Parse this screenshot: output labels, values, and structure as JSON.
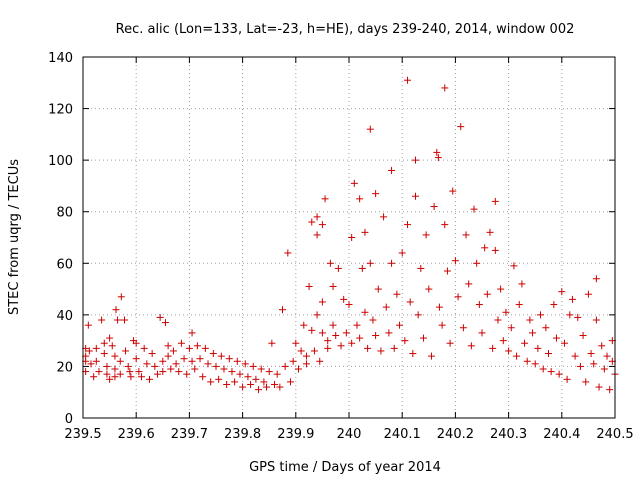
{
  "chart_data": {
    "type": "scatter",
    "title": "Rec. alic (Lon=133, Lat=-23, h=HE), days 239-240, 2014, window 002",
    "xlabel": "GPS time / Days of year 2014",
    "ylabel": "STEC from uqrg / TECUs",
    "xlim": [
      239.5,
      240.5
    ],
    "ylim": [
      0,
      140
    ],
    "xticks": [
      "239.5",
      "239.6",
      "239.7",
      "239.8",
      "239.9",
      "240",
      "240.1",
      "240.2",
      "240.3",
      "240.4",
      "240.5"
    ],
    "yticks": [
      "0",
      "20",
      "40",
      "60",
      "80",
      "100",
      "120",
      "140"
    ],
    "grid": true,
    "marker": "+",
    "color": "#cc0000",
    "series": [
      {
        "points": [
          [
            239.505,
            27
          ],
          [
            239.505,
            24
          ],
          [
            239.505,
            22
          ],
          [
            239.505,
            18
          ],
          [
            239.51,
            36
          ],
          [
            239.512,
            26
          ],
          [
            239.515,
            21
          ],
          [
            239.52,
            16
          ],
          [
            239.525,
            27
          ],
          [
            239.525,
            22
          ],
          [
            239.53,
            18
          ],
          [
            239.535,
            38
          ],
          [
            239.54,
            29
          ],
          [
            239.54,
            25
          ],
          [
            239.545,
            20
          ],
          [
            239.545,
            17
          ],
          [
            239.55,
            15
          ],
          [
            239.55,
            31
          ],
          [
            239.555,
            28
          ],
          [
            239.56,
            24
          ],
          [
            239.56,
            19
          ],
          [
            239.56,
            16
          ],
          [
            239.562,
            42
          ],
          [
            239.565,
            38
          ],
          [
            239.57,
            22
          ],
          [
            239.57,
            17
          ],
          [
            239.572,
            47
          ],
          [
            239.578,
            38
          ],
          [
            239.58,
            26
          ],
          [
            239.585,
            20
          ],
          [
            239.588,
            18
          ],
          [
            239.59,
            16
          ],
          [
            239.595,
            30
          ],
          [
            239.6,
            29
          ],
          [
            239.6,
            23
          ],
          [
            239.605,
            18
          ],
          [
            239.61,
            16
          ],
          [
            239.615,
            27
          ],
          [
            239.62,
            21
          ],
          [
            239.625,
            15
          ],
          [
            239.63,
            25
          ],
          [
            239.635,
            20
          ],
          [
            239.64,
            17
          ],
          [
            239.645,
            39
          ],
          [
            239.65,
            22
          ],
          [
            239.65,
            18
          ],
          [
            239.655,
            37
          ],
          [
            239.66,
            28
          ],
          [
            239.66,
            24
          ],
          [
            239.665,
            19
          ],
          [
            239.67,
            26
          ],
          [
            239.675,
            21
          ],
          [
            239.68,
            18
          ],
          [
            239.685,
            29
          ],
          [
            239.69,
            23
          ],
          [
            239.695,
            17
          ],
          [
            239.7,
            27
          ],
          [
            239.705,
            33
          ],
          [
            239.705,
            22
          ],
          [
            239.71,
            19
          ],
          [
            239.715,
            28
          ],
          [
            239.72,
            23
          ],
          [
            239.725,
            16
          ],
          [
            239.73,
            27
          ],
          [
            239.735,
            21
          ],
          [
            239.74,
            14
          ],
          [
            239.745,
            25
          ],
          [
            239.75,
            20
          ],
          [
            239.755,
            15
          ],
          [
            239.76,
            24
          ],
          [
            239.765,
            19
          ],
          [
            239.77,
            13
          ],
          [
            239.775,
            23
          ],
          [
            239.78,
            18
          ],
          [
            239.785,
            14
          ],
          [
            239.79,
            22
          ],
          [
            239.795,
            17
          ],
          [
            239.8,
            12
          ],
          [
            239.805,
            21
          ],
          [
            239.81,
            16
          ],
          [
            239.815,
            13
          ],
          [
            239.82,
            20
          ],
          [
            239.825,
            15
          ],
          [
            239.83,
            11
          ],
          [
            239.835,
            19
          ],
          [
            239.84,
            14
          ],
          [
            239.845,
            12
          ],
          [
            239.85,
            18
          ],
          [
            239.855,
            29
          ],
          [
            239.86,
            13
          ],
          [
            239.865,
            17
          ],
          [
            239.87,
            12
          ],
          [
            239.875,
            42
          ],
          [
            239.88,
            20
          ],
          [
            239.885,
            64
          ],
          [
            239.89,
            14
          ],
          [
            239.895,
            22
          ],
          [
            239.9,
            29
          ],
          [
            239.905,
            19
          ],
          [
            239.91,
            26
          ],
          [
            239.915,
            36
          ],
          [
            239.92,
            24
          ],
          [
            239.92,
            21
          ],
          [
            239.925,
            51
          ],
          [
            239.93,
            76
          ],
          [
            239.93,
            34
          ],
          [
            239.935,
            26
          ],
          [
            239.94,
            78
          ],
          [
            239.94,
            40
          ],
          [
            239.94,
            71
          ],
          [
            239.945,
            22
          ],
          [
            239.95,
            75
          ],
          [
            239.95,
            33
          ],
          [
            239.95,
            45
          ],
          [
            239.955,
            85
          ],
          [
            239.96,
            30
          ],
          [
            239.96,
            27
          ],
          [
            239.965,
            60
          ],
          [
            239.97,
            36
          ],
          [
            239.97,
            51
          ],
          [
            239.975,
            32
          ],
          [
            239.98,
            58
          ],
          [
            239.985,
            28
          ],
          [
            239.99,
            46
          ],
          [
            239.995,
            33
          ],
          [
            240.0,
            44
          ],
          [
            240.005,
            29
          ],
          [
            240.005,
            70
          ],
          [
            240.01,
            91
          ],
          [
            240.015,
            36
          ],
          [
            240.02,
            85
          ],
          [
            240.02,
            31
          ],
          [
            240.025,
            58
          ],
          [
            240.03,
            72
          ],
          [
            240.03,
            41
          ],
          [
            240.035,
            27
          ],
          [
            240.04,
            112
          ],
          [
            240.04,
            60
          ],
          [
            240.045,
            38
          ],
          [
            240.05,
            32
          ],
          [
            240.05,
            87
          ],
          [
            240.055,
            50
          ],
          [
            240.06,
            26
          ],
          [
            240.065,
            78
          ],
          [
            240.07,
            43
          ],
          [
            240.075,
            33
          ],
          [
            240.08,
            96
          ],
          [
            240.08,
            60
          ],
          [
            240.085,
            27
          ],
          [
            240.09,
            48
          ],
          [
            240.095,
            36
          ],
          [
            240.1,
            64
          ],
          [
            240.105,
            30
          ],
          [
            240.11,
            131
          ],
          [
            240.11,
            75
          ],
          [
            240.115,
            45
          ],
          [
            240.12,
            25
          ],
          [
            240.125,
            86
          ],
          [
            240.125,
            100
          ],
          [
            240.13,
            40
          ],
          [
            240.135,
            58
          ],
          [
            240.14,
            31
          ],
          [
            240.145,
            71
          ],
          [
            240.15,
            50
          ],
          [
            240.155,
            24
          ],
          [
            240.16,
            82
          ],
          [
            240.165,
            103
          ],
          [
            240.168,
            101
          ],
          [
            240.17,
            43
          ],
          [
            240.175,
            36
          ],
          [
            240.18,
            128
          ],
          [
            240.18,
            75
          ],
          [
            240.185,
            57
          ],
          [
            240.19,
            29
          ],
          [
            240.195,
            88
          ],
          [
            240.2,
            61
          ],
          [
            240.205,
            47
          ],
          [
            240.21,
            113
          ],
          [
            240.215,
            35
          ],
          [
            240.22,
            71
          ],
          [
            240.225,
            52
          ],
          [
            240.23,
            28
          ],
          [
            240.235,
            81
          ],
          [
            240.24,
            60
          ],
          [
            240.245,
            44
          ],
          [
            240.25,
            33
          ],
          [
            240.255,
            66
          ],
          [
            240.26,
            48
          ],
          [
            240.265,
            72
          ],
          [
            240.27,
            27
          ],
          [
            240.275,
            84
          ],
          [
            240.275,
            65
          ],
          [
            240.28,
            38
          ],
          [
            240.285,
            50
          ],
          [
            240.29,
            30
          ],
          [
            240.295,
            41
          ],
          [
            240.3,
            26
          ],
          [
            240.305,
            35
          ],
          [
            240.31,
            59
          ],
          [
            240.315,
            24
          ],
          [
            240.32,
            44
          ],
          [
            240.325,
            52
          ],
          [
            240.33,
            29
          ],
          [
            240.335,
            22
          ],
          [
            240.34,
            38
          ],
          [
            240.345,
            33
          ],
          [
            240.35,
            21
          ],
          [
            240.355,
            27
          ],
          [
            240.36,
            40
          ],
          [
            240.365,
            19
          ],
          [
            240.37,
            35
          ],
          [
            240.375,
            25
          ],
          [
            240.38,
            18
          ],
          [
            240.385,
            44
          ],
          [
            240.39,
            31
          ],
          [
            240.395,
            17
          ],
          [
            240.4,
            49
          ],
          [
            240.405,
            29
          ],
          [
            240.41,
            15
          ],
          [
            240.415,
            40
          ],
          [
            240.42,
            46
          ],
          [
            240.425,
            24
          ],
          [
            240.43,
            39
          ],
          [
            240.435,
            20
          ],
          [
            240.44,
            32
          ],
          [
            240.445,
            14
          ],
          [
            240.45,
            48
          ],
          [
            240.455,
            25
          ],
          [
            240.46,
            21
          ],
          [
            240.465,
            54
          ],
          [
            240.465,
            38
          ],
          [
            240.47,
            12
          ],
          [
            240.475,
            28
          ],
          [
            240.48,
            19
          ],
          [
            240.485,
            24
          ],
          [
            240.49,
            11
          ],
          [
            240.495,
            30
          ],
          [
            240.495,
            22
          ],
          [
            240.5,
            17
          ]
        ]
      }
    ]
  }
}
